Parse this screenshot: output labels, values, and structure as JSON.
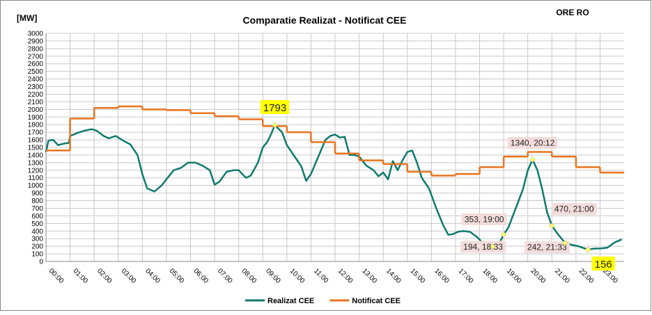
{
  "chart_data": {
    "type": "line",
    "title": "Comparatie Realizat - Notificat  CEE",
    "y_label": "[MW]",
    "corner_label": "ORE RO",
    "ylim": [
      0,
      3000
    ],
    "yticks": [
      0,
      100,
      200,
      300,
      400,
      500,
      600,
      700,
      800,
      900,
      1000,
      1100,
      1200,
      1300,
      1400,
      1500,
      1600,
      1700,
      1800,
      1900,
      2000,
      2100,
      2200,
      2300,
      2400,
      2500,
      2600,
      2700,
      2800,
      2900,
      3000
    ],
    "xlim": [
      0,
      24
    ],
    "xticks": [
      {
        "value": 0,
        "label": "00:00"
      },
      {
        "value": 1,
        "label": "01:00"
      },
      {
        "value": 2,
        "label": "02:00"
      },
      {
        "value": 3,
        "label": "03:00"
      },
      {
        "value": 4,
        "label": "04:00"
      },
      {
        "value": 5,
        "label": "05:00"
      },
      {
        "value": 6,
        "label": "06:00"
      },
      {
        "value": 7,
        "label": "07:00"
      },
      {
        "value": 8,
        "label": "08:00"
      },
      {
        "value": 9,
        "label": "09:00"
      },
      {
        "value": 10,
        "label": "10:00"
      },
      {
        "value": 11,
        "label": "11:00"
      },
      {
        "value": 12,
        "label": "12:00"
      },
      {
        "value": 13,
        "label": "13:00"
      },
      {
        "value": 14,
        "label": "14:00"
      },
      {
        "value": 15,
        "label": "15:00"
      },
      {
        "value": 16,
        "label": "16:00"
      },
      {
        "value": 17,
        "label": "17:00"
      },
      {
        "value": 18,
        "label": "18:00"
      },
      {
        "value": 19,
        "label": "19:00"
      },
      {
        "value": 20,
        "label": "20:00"
      },
      {
        "value": 21,
        "label": "21:00"
      },
      {
        "value": 22,
        "label": "22:00"
      },
      {
        "value": 23,
        "label": "23:00"
      }
    ],
    "grid": true,
    "legend": "bottom",
    "series": [
      {
        "name": "Realizat CEE",
        "color": "#0e7a6e",
        "step": false,
        "x": [
          0,
          0.1,
          0.3,
          0.5,
          0.75,
          0.95,
          1.0,
          1.3,
          1.6,
          1.9,
          2.1,
          2.4,
          2.6,
          2.9,
          3.2,
          3.5,
          3.8,
          4.0,
          4.2,
          4.5,
          4.8,
          5.1,
          5.3,
          5.6,
          5.9,
          6.2,
          6.5,
          6.8,
          7.0,
          7.2,
          7.5,
          7.8,
          8.0,
          8.3,
          8.5,
          8.8,
          9.0,
          9.2,
          9.35,
          9.5,
          9.8,
          10.0,
          10.3,
          10.6,
          10.8,
          11.0,
          11.2,
          11.4,
          11.6,
          11.8,
          12.0,
          12.2,
          12.4,
          12.6,
          12.8,
          13.0,
          13.3,
          13.6,
          13.8,
          14.0,
          14.2,
          14.4,
          14.6,
          14.8,
          15.0,
          15.2,
          15.4,
          15.6,
          15.9,
          16.2,
          16.5,
          16.7,
          16.9,
          17.1,
          17.3,
          17.6,
          17.9,
          18.2,
          18.55,
          18.8,
          19.0,
          19.2,
          19.5,
          19.8,
          20.0,
          20.2,
          20.4,
          20.6,
          20.8,
          21.0,
          21.2,
          21.55,
          21.8,
          22.1,
          22.5,
          22.8,
          23.0,
          23.3,
          23.6,
          23.9
        ],
        "values": [
          1440,
          1590,
          1600,
          1530,
          1550,
          1560,
          1650,
          1690,
          1720,
          1740,
          1720,
          1650,
          1620,
          1650,
          1590,
          1540,
          1400,
          1150,
          960,
          920,
          1000,
          1120,
          1200,
          1230,
          1300,
          1300,
          1260,
          1200,
          1010,
          1050,
          1180,
          1200,
          1200,
          1100,
          1130,
          1300,
          1500,
          1580,
          1680,
          1793,
          1700,
          1530,
          1390,
          1250,
          1060,
          1150,
          1300,
          1450,
          1600,
          1650,
          1670,
          1630,
          1640,
          1400,
          1400,
          1380,
          1260,
          1200,
          1120,
          1170,
          1080,
          1320,
          1200,
          1330,
          1440,
          1460,
          1300,
          1100,
          960,
          700,
          470,
          350,
          360,
          390,
          400,
          390,
          320,
          220,
          194,
          230,
          353,
          450,
          700,
          950,
          1200,
          1340,
          1200,
          950,
          650,
          470,
          380,
          242,
          220,
          200,
          156,
          170,
          170,
          180,
          250,
          290
        ]
      },
      {
        "name": "Notificat CEE",
        "color": "#e8731e",
        "step": true,
        "x": [
          0,
          1,
          2,
          3,
          4,
          5,
          6,
          7,
          8,
          9,
          10,
          11,
          12,
          13,
          14,
          15,
          16,
          17,
          18,
          19,
          20,
          21,
          22,
          23
        ],
        "values": [
          1460,
          1880,
          2020,
          2040,
          2000,
          1990,
          1950,
          1910,
          1870,
          1780,
          1700,
          1570,
          1420,
          1330,
          1280,
          1180,
          1130,
          1150,
          1240,
          1380,
          1440,
          1380,
          1240,
          1170
        ]
      }
    ],
    "annotations": [
      {
        "x": 9.5,
        "y": 1793,
        "color": "#ffff00"
      },
      {
        "x": 20.2,
        "y": 1340,
        "label": "1340, 20:12",
        "color": "#f2dcdb"
      },
      {
        "x": 21.0,
        "y": 470,
        "label": "470, 21:00",
        "color": "#f2dcdb"
      },
      {
        "x": 19.0,
        "y": 353,
        "label": "353, 19:00",
        "color": "#f2dcdb"
      },
      {
        "x": 18.55,
        "y": 194,
        "label": "194, 18:33",
        "color": "#f2dcdb"
      },
      {
        "x": 21.55,
        "y": 242,
        "label": "242, 21:33",
        "color": "#f2dcdb"
      },
      {
        "x": 22.5,
        "y": 156,
        "color": "#ffff00"
      }
    ]
  }
}
